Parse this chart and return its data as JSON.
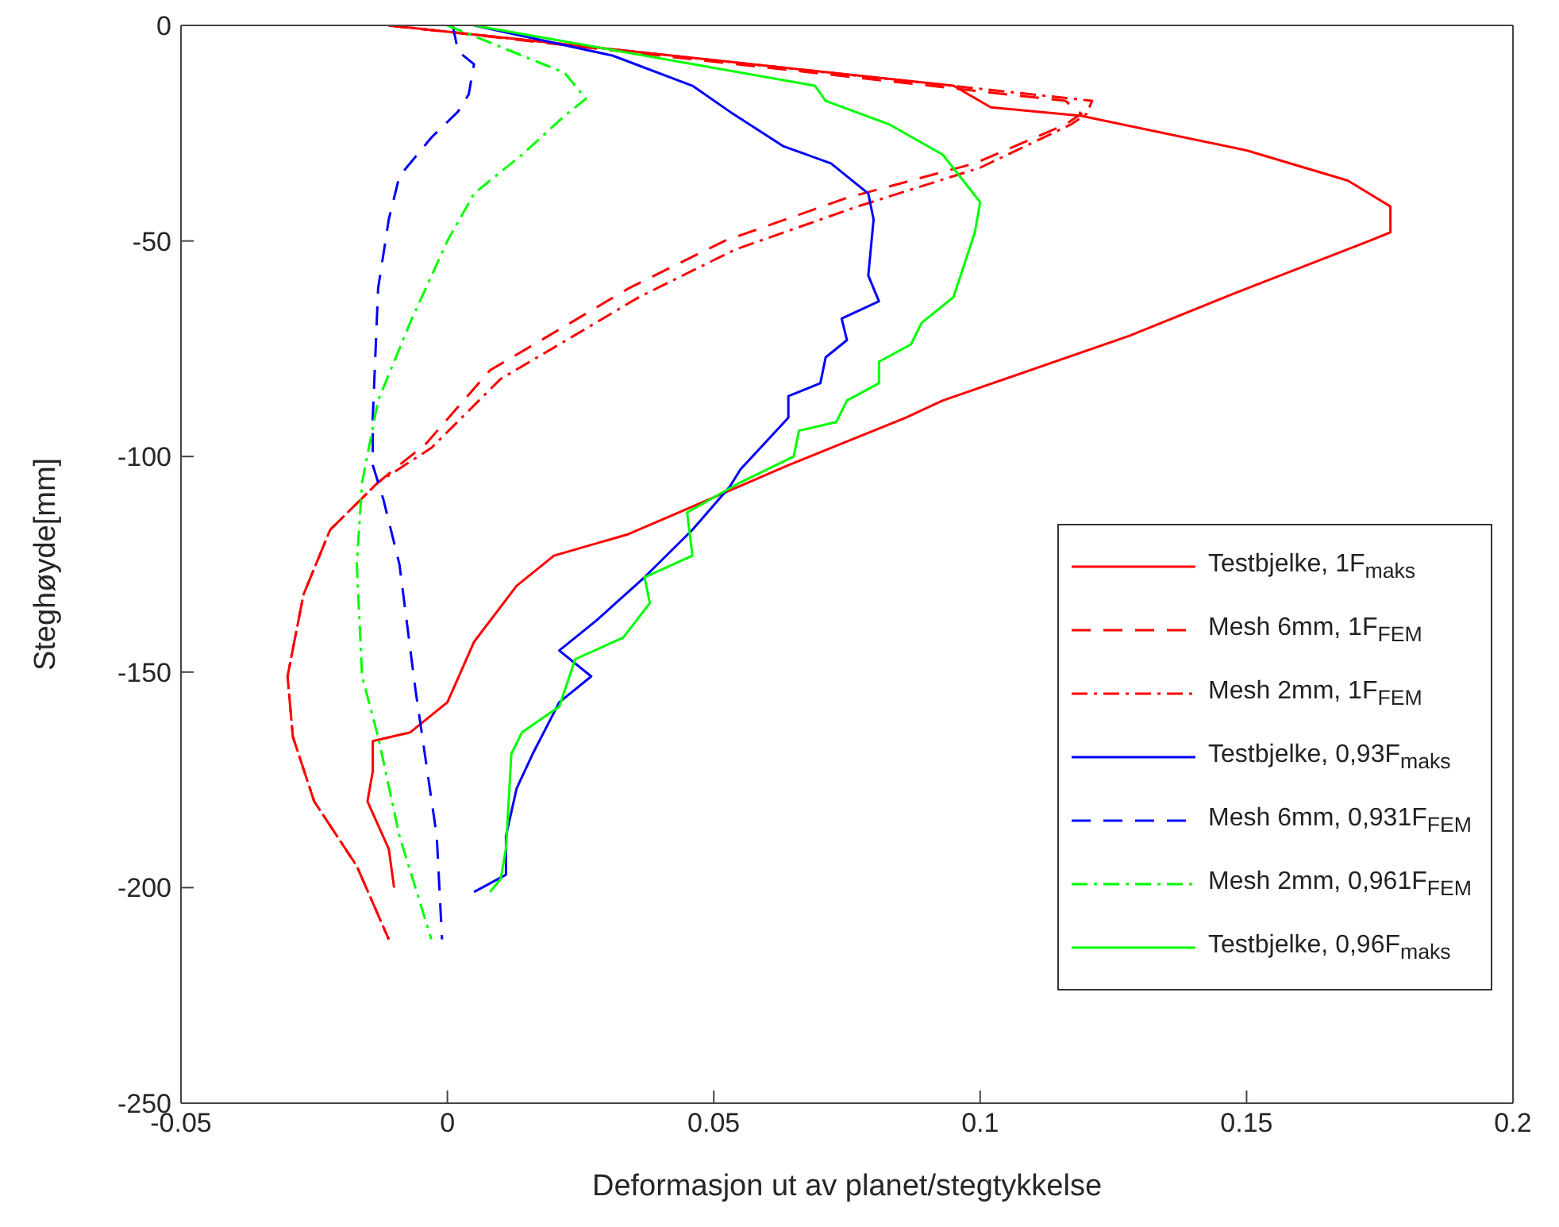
{
  "chart_data": {
    "type": "line",
    "xlabel": "Deformasjon ut av planet/stegtykkelse",
    "ylabel": "Steghøyde[mm]",
    "xlim": [
      -0.05,
      0.2
    ],
    "xticks": [
      -0.05,
      0,
      0.05,
      0.1,
      0.15,
      0.2
    ],
    "ylim": [
      -250,
      0
    ],
    "yticks": [
      -250,
      -200,
      -150,
      -100,
      -50,
      0
    ],
    "legend": "right",
    "marker": "none",
    "series": [
      {
        "name": "Testbjelke, 1F$_{maks}$",
        "color": "#ff0000",
        "line_style": "solid",
        "x": [
          -0.011,
          0.095,
          0.102,
          0.119,
          0.15,
          0.169,
          0.177,
          0.177,
          0.173,
          0.148,
          0.128,
          0.093,
          0.086,
          0.064,
          0.049,
          0.034,
          0.02,
          0.013,
          0.005,
          0.0,
          -0.007,
          -0.014,
          -0.014,
          -0.015,
          -0.011,
          -0.01
        ],
        "values": [
          0,
          -14,
          -19,
          -21,
          -29,
          -36,
          -42,
          -48,
          -50,
          -62,
          -72,
          -87,
          -91,
          -102,
          -110,
          -118,
          -123,
          -130,
          -143,
          -157,
          -164,
          -166,
          -173,
          -180,
          -191,
          -200
        ]
      },
      {
        "name": "Mesh 6mm, 1F$_{FEM}$",
        "color": "#ff0000",
        "line_style": "dashed",
        "x": [
          -0.011,
          0.116,
          0.119,
          0.116,
          0.099,
          0.075,
          0.052,
          0.034,
          0.019,
          0.008,
          -0.004,
          -0.013,
          -0.022,
          -0.027,
          -0.03,
          -0.029,
          -0.025,
          -0.017,
          -0.011
        ],
        "values": [
          0,
          -17.5,
          -20.5,
          -23,
          -32,
          -40,
          -50,
          -61,
          -72,
          -80,
          -97,
          -106,
          -117,
          -132,
          -151,
          -165,
          -180,
          -195,
          -212
        ]
      },
      {
        "name": "Mesh 2mm, 1F$_{FEM}$",
        "color": "#ff0000",
        "line_style": "dashdot",
        "x": [
          -0.011,
          0.121,
          0.12,
          0.117,
          0.1,
          0.077,
          0.054,
          0.036,
          0.021,
          0.01,
          -0.003,
          -0.013,
          -0.022,
          -0.027,
          -0.03,
          -0.029,
          -0.025,
          -0.017,
          -0.011
        ],
        "values": [
          0,
          -17.5,
          -20.5,
          -23,
          -33,
          -42,
          -52,
          -63,
          -74,
          -82,
          -98,
          -106,
          -117,
          -132,
          -151,
          -165,
          -180,
          -195,
          -212
        ]
      },
      {
        "name": "Testbjelke, 0,93F$_{maks}$",
        "color": "#0000ff",
        "line_style": "solid",
        "x": [
          0.005,
          0.031,
          0.046,
          0.053,
          0.063,
          0.072,
          0.079,
          0.08,
          0.079,
          0.081,
          0.074,
          0.075,
          0.071,
          0.07,
          0.064,
          0.064,
          0.055,
          0.053,
          0.046,
          0.037,
          0.028,
          0.021,
          0.027,
          0.021,
          0.016,
          0.013,
          0.011,
          0.011,
          0.005
        ],
        "values": [
          0,
          -7,
          -14,
          -20,
          -28,
          -32,
          -39,
          -45,
          -58,
          -64,
          -68,
          -73,
          -77,
          -83,
          -86,
          -91,
          -103,
          -107,
          -117,
          -128,
          -138,
          -145,
          -151,
          -157,
          -169,
          -177,
          -188,
          -197,
          -201
        ]
      },
      {
        "name": "Mesh 6mm, 0,931F$_{FEM}$",
        "color": "#0000ff",
        "line_style": "dashed",
        "x": [
          0.001,
          0.002,
          0.005,
          0.004,
          0.002,
          -0.003,
          -0.009,
          -0.011,
          -0.013,
          -0.014,
          -0.014,
          -0.012,
          -0.009,
          -0.006,
          -0.002,
          -0.001
        ],
        "values": [
          0,
          -6,
          -9,
          -16,
          -20,
          -26,
          -35,
          -45,
          -61,
          -91,
          -102,
          -110,
          -125,
          -154,
          -188,
          -212
        ]
      },
      {
        "name": "Mesh 2mm, 0,961F$_{FEM}$",
        "color": "#00ff00",
        "line_style": "dashdot",
        "x": [
          0.0,
          0.008,
          0.022,
          0.026,
          0.022,
          0.014,
          0.005,
          0.0,
          -0.007,
          -0.013,
          -0.016,
          -0.017,
          -0.016,
          -0.013,
          -0.009,
          -0.003
        ],
        "values": [
          0,
          -4,
          -11,
          -17,
          -21,
          -30,
          -39,
          -50,
          -69,
          -87,
          -106,
          -125,
          -151,
          -165,
          -188,
          -212
        ]
      },
      {
        "name": "Testbjelke, 0,96F$_{maks}$",
        "color": "#00ff00",
        "line_style": "solid",
        "x": [
          0.005,
          0.069,
          0.071,
          0.083,
          0.093,
          0.1,
          0.099,
          0.095,
          0.089,
          0.087,
          0.081,
          0.081,
          0.075,
          0.073,
          0.066,
          0.065,
          0.055,
          0.045,
          0.046,
          0.037,
          0.038,
          0.033,
          0.024,
          0.021,
          0.014,
          0.012,
          0.011,
          0.01,
          0.008
        ],
        "values": [
          0,
          -14,
          -17.5,
          -23,
          -30,
          -41,
          -48,
          -63,
          -69,
          -74,
          -78,
          -83,
          -87,
          -92,
          -94,
          -100,
          -106,
          -113,
          -123,
          -128,
          -134,
          -142,
          -147,
          -158,
          -164,
          -169,
          -191,
          -198,
          -201
        ]
      }
    ]
  }
}
